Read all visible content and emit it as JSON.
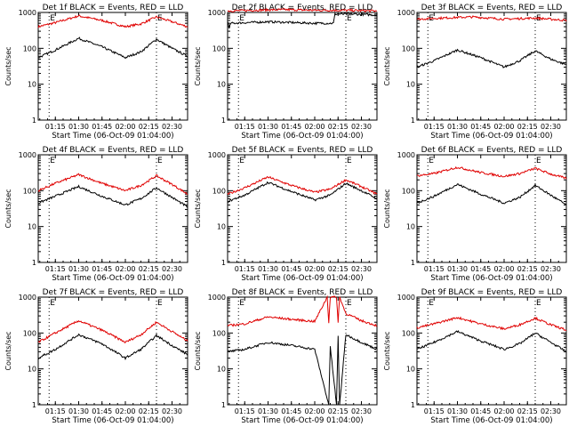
{
  "figure": {
    "start_time_label": "Start Time (06-Oct-09 01:04:00)",
    "y_label": "Counts/sec",
    "colors": {
      "events": "#000000",
      "lld": "#e00000",
      "axes": "#000000",
      "marker": "#000000"
    }
  },
  "chart_data": [
    {
      "type": "line",
      "title": "Det 1f BLACK = Events, RED = LLD",
      "xlabel": "Start Time (06-Oct-09 01:04:00)",
      "ylabel": "Counts/sec",
      "yscale": "log",
      "ylim": [
        1,
        1000
      ],
      "xlim": [
        "01:04",
        "02:40"
      ],
      "yticks": [
        "1",
        "10",
        "100",
        "1000"
      ],
      "xticks": [
        "01:15",
        "01:30",
        "01:45",
        "02:00",
        "02:15",
        "02:30"
      ],
      "markers": [
        {
          "time": "01:11",
          "label": "E"
        },
        {
          "time": "02:20",
          "label": "E"
        }
      ],
      "series": [
        {
          "name": "LLD",
          "color": "#e00000",
          "x": [
            "01:04",
            "01:15",
            "01:30",
            "01:45",
            "02:00",
            "02:10",
            "02:20",
            "02:30",
            "02:40"
          ],
          "values": [
            400,
            520,
            800,
            600,
            400,
            480,
            750,
            550,
            400
          ]
        },
        {
          "name": "Events",
          "color": "#000000",
          "x": [
            "01:04",
            "01:15",
            "01:30",
            "01:45",
            "02:00",
            "02:10",
            "02:20",
            "02:30",
            "02:40"
          ],
          "values": [
            55,
            90,
            190,
            110,
            55,
            80,
            180,
            100,
            60
          ]
        }
      ]
    },
    {
      "type": "line",
      "title": "Det 2f BLACK = Events, RED = LLD",
      "xlabel": "Start Time (06-Oct-09 01:04:00)",
      "ylabel": "Counts/sec",
      "yscale": "log",
      "ylim": [
        1,
        1000
      ],
      "xlim": [
        "01:04",
        "02:40"
      ],
      "yticks": [
        "1",
        "10",
        "100",
        "1000"
      ],
      "xticks": [
        "01:15",
        "01:30",
        "01:45",
        "02:00",
        "02:15",
        "02:30"
      ],
      "markers": [
        {
          "time": "01:11",
          "label": "E"
        },
        {
          "time": "02:20",
          "label": "E"
        }
      ],
      "series": [
        {
          "name": "LLD",
          "color": "#e00000",
          "x": [
            "01:04",
            "01:20",
            "01:40",
            "02:00",
            "02:20",
            "02:40"
          ],
          "values": [
            1100,
            1150,
            1200,
            1150,
            1150,
            1100
          ]
        },
        {
          "name": "Events",
          "color": "#000000",
          "x": [
            "01:04",
            "01:05",
            "01:06",
            "01:30",
            "02:00",
            "02:12",
            "02:13",
            "02:25",
            "02:40"
          ],
          "values": [
            600,
            350,
            500,
            550,
            500,
            500,
            900,
            900,
            850
          ]
        }
      ]
    },
    {
      "type": "line",
      "title": "Det 3f BLACK = Events, RED = LLD",
      "xlabel": "Start Time (06-Oct-09 01:04:00)",
      "ylabel": "Counts/sec",
      "yscale": "log",
      "ylim": [
        1,
        1000
      ],
      "xlim": [
        "01:04",
        "02:40"
      ],
      "yticks": [
        "1",
        "10",
        "100",
        "1000"
      ],
      "xticks": [
        "01:15",
        "01:30",
        "01:45",
        "02:00",
        "02:15",
        "02:30"
      ],
      "markers": [
        {
          "time": "01:11",
          "label": "E"
        },
        {
          "time": "02:20",
          "label": "E"
        }
      ],
      "series": [
        {
          "name": "LLD",
          "color": "#e00000",
          "x": [
            "01:04",
            "01:20",
            "01:40",
            "02:00",
            "02:20",
            "02:40"
          ],
          "values": [
            650,
            700,
            750,
            650,
            700,
            600
          ]
        },
        {
          "name": "Events",
          "color": "#000000",
          "x": [
            "01:04",
            "01:15",
            "01:30",
            "01:45",
            "02:00",
            "02:10",
            "02:20",
            "02:30",
            "02:40"
          ],
          "values": [
            30,
            45,
            90,
            55,
            30,
            45,
            85,
            50,
            35
          ]
        }
      ]
    },
    {
      "type": "line",
      "title": "Det 4f BLACK = Events, RED = LLD",
      "xlabel": "Start Time (06-Oct-09 01:04:00)",
      "ylabel": "Counts/sec",
      "yscale": "log",
      "ylim": [
        1,
        1000
      ],
      "xlim": [
        "01:04",
        "02:40"
      ],
      "yticks": [
        "1",
        "10",
        "100",
        "1000"
      ],
      "xticks": [
        "01:15",
        "01:30",
        "01:45",
        "02:00",
        "02:15",
        "02:30"
      ],
      "markers": [
        {
          "time": "01:11",
          "label": "E"
        },
        {
          "time": "02:20",
          "label": "E"
        }
      ],
      "series": [
        {
          "name": "LLD",
          "color": "#e00000",
          "x": [
            "01:04",
            "01:15",
            "01:30",
            "01:45",
            "02:00",
            "02:10",
            "02:20",
            "02:30",
            "02:40"
          ],
          "values": [
            100,
            160,
            280,
            160,
            100,
            140,
            260,
            150,
            80
          ]
        },
        {
          "name": "Events",
          "color": "#000000",
          "x": [
            "01:04",
            "01:15",
            "01:30",
            "01:45",
            "02:00",
            "02:10",
            "02:20",
            "02:30",
            "02:40"
          ],
          "values": [
            45,
            70,
            130,
            70,
            40,
            60,
            120,
            65,
            35
          ]
        }
      ]
    },
    {
      "type": "line",
      "title": "Det 5f BLACK = Events, RED = LLD",
      "xlabel": "Start Time (06-Oct-09 01:04:00)",
      "ylabel": "Counts/sec",
      "yscale": "log",
      "ylim": [
        1,
        1000
      ],
      "xlim": [
        "01:04",
        "02:40"
      ],
      "yticks": [
        "1",
        "10",
        "100",
        "1000"
      ],
      "xticks": [
        "01:15",
        "01:30",
        "01:45",
        "02:00",
        "02:15",
        "02:30"
      ],
      "markers": [
        {
          "time": "01:11",
          "label": "E"
        },
        {
          "time": "02:20",
          "label": "E"
        }
      ],
      "series": [
        {
          "name": "LLD",
          "color": "#e00000",
          "x": [
            "01:04",
            "01:15",
            "01:30",
            "01:45",
            "02:00",
            "02:10",
            "02:20",
            "02:30",
            "02:40"
          ],
          "values": [
            80,
            120,
            240,
            140,
            90,
            110,
            200,
            130,
            80
          ]
        },
        {
          "name": "Events",
          "color": "#000000",
          "x": [
            "01:04",
            "01:15",
            "01:30",
            "01:45",
            "02:00",
            "02:10",
            "02:20",
            "02:30",
            "02:40"
          ],
          "values": [
            50,
            75,
            170,
            95,
            55,
            75,
            160,
            100,
            60
          ]
        }
      ]
    },
    {
      "type": "line",
      "title": "Det 6f BLACK = Events, RED = LLD",
      "xlabel": "Start Time (06-Oct-09 01:04:00)",
      "ylabel": "Counts/sec",
      "yscale": "log",
      "ylim": [
        1,
        1000
      ],
      "xlim": [
        "01:04",
        "02:40"
      ],
      "yticks": [
        "1",
        "10",
        "100",
        "1000"
      ],
      "xticks": [
        "01:15",
        "01:30",
        "01:45",
        "02:00",
        "02:15",
        "02:30"
      ],
      "markers": [
        {
          "time": "01:11",
          "label": "E"
        },
        {
          "time": "02:20",
          "label": "E"
        }
      ],
      "series": [
        {
          "name": "LLD",
          "color": "#e00000",
          "x": [
            "01:04",
            "01:15",
            "01:30",
            "01:45",
            "02:00",
            "02:10",
            "02:20",
            "02:30",
            "02:40"
          ],
          "values": [
            260,
            300,
            450,
            320,
            250,
            300,
            420,
            290,
            220
          ]
        },
        {
          "name": "Events",
          "color": "#000000",
          "x": [
            "01:04",
            "01:15",
            "01:30",
            "01:45",
            "02:00",
            "02:10",
            "02:20",
            "02:30",
            "02:40"
          ],
          "values": [
            45,
            70,
            150,
            80,
            45,
            65,
            140,
            75,
            40
          ]
        }
      ]
    },
    {
      "type": "line",
      "title": "Det 7f BLACK = Events, RED = LLD",
      "xlabel": "Start Time (06-Oct-09 01:04:00)",
      "ylabel": "Counts/sec",
      "yscale": "log",
      "ylim": [
        1,
        1000
      ],
      "xlim": [
        "01:04",
        "02:40"
      ],
      "yticks": [
        "1",
        "10",
        "100",
        "1000"
      ],
      "xticks": [
        "01:15",
        "01:30",
        "01:45",
        "02:00",
        "02:15",
        "02:30"
      ],
      "markers": [
        {
          "time": "01:11",
          "label": "E"
        },
        {
          "time": "02:20",
          "label": "E"
        }
      ],
      "series": [
        {
          "name": "LLD",
          "color": "#e00000",
          "x": [
            "01:04",
            "01:15",
            "01:30",
            "01:45",
            "02:00",
            "02:10",
            "02:20",
            "02:30",
            "02:40"
          ],
          "values": [
            55,
            100,
            220,
            120,
            55,
            90,
            200,
            110,
            60
          ]
        },
        {
          "name": "Events",
          "color": "#000000",
          "x": [
            "01:04",
            "01:15",
            "01:30",
            "01:45",
            "02:00",
            "02:10",
            "02:20",
            "02:30",
            "02:40"
          ],
          "values": [
            20,
            35,
            90,
            50,
            20,
            35,
            85,
            45,
            25
          ]
        }
      ]
    },
    {
      "type": "line",
      "title": "Det 8f BLACK = Events, RED = LLD",
      "xlabel": "Start Time (06-Oct-09 01:04:00)",
      "ylabel": "Counts/sec",
      "yscale": "log",
      "ylim": [
        1,
        1000
      ],
      "xlim": [
        "01:04",
        "02:40"
      ],
      "yticks": [
        "1",
        "10",
        "100",
        "1000"
      ],
      "xticks": [
        "01:15",
        "01:30",
        "01:45",
        "02:00",
        "02:15",
        "02:30"
      ],
      "markers": [
        {
          "time": "01:11",
          "label": "E"
        },
        {
          "time": "02:20",
          "label": "E"
        }
      ],
      "series": [
        {
          "name": "LLD",
          "color": "#e00000",
          "x": [
            "01:04",
            "01:15",
            "01:30",
            "01:45",
            "02:00",
            "02:08",
            "02:09",
            "02:10",
            "02:14",
            "02:15",
            "02:16",
            "02:20",
            "02:30",
            "02:40"
          ],
          "values": [
            160,
            180,
            280,
            240,
            210,
            1000,
            200,
            1000,
            1000,
            200,
            1000,
            350,
            220,
            160
          ]
        },
        {
          "name": "Events",
          "color": "#000000",
          "x": [
            "01:04",
            "01:15",
            "01:30",
            "01:45",
            "02:00",
            "02:09",
            "02:10",
            "02:14",
            "02:15",
            "02:16",
            "02:20",
            "02:30",
            "02:40"
          ],
          "values": [
            30,
            35,
            55,
            45,
            35,
            1,
            40,
            1,
            80,
            1,
            90,
            55,
            35
          ]
        }
      ]
    },
    {
      "type": "line",
      "title": "Det 9f BLACK = Events, RED = LLD",
      "xlabel": "Start Time (06-Oct-09 01:04:00)",
      "ylabel": "Counts/sec",
      "yscale": "log",
      "ylim": [
        1,
        1000
      ],
      "xlim": [
        "01:04",
        "02:40"
      ],
      "yticks": [
        "1",
        "10",
        "100",
        "1000"
      ],
      "xticks": [
        "01:15",
        "01:30",
        "01:45",
        "02:00",
        "02:15",
        "02:30"
      ],
      "markers": [
        {
          "time": "01:11",
          "label": "E"
        },
        {
          "time": "02:20",
          "label": "E"
        }
      ],
      "series": [
        {
          "name": "LLD",
          "color": "#e00000",
          "x": [
            "01:04",
            "01:15",
            "01:30",
            "01:45",
            "02:00",
            "02:10",
            "02:20",
            "02:30",
            "02:40"
          ],
          "values": [
            140,
            180,
            270,
            180,
            130,
            170,
            260,
            170,
            120
          ]
        },
        {
          "name": "Events",
          "color": "#000000",
          "x": [
            "01:04",
            "01:15",
            "01:30",
            "01:45",
            "02:00",
            "02:10",
            "02:20",
            "02:30",
            "02:40"
          ],
          "values": [
            35,
            55,
            110,
            60,
            35,
            50,
            100,
            55,
            30
          ]
        }
      ]
    }
  ]
}
